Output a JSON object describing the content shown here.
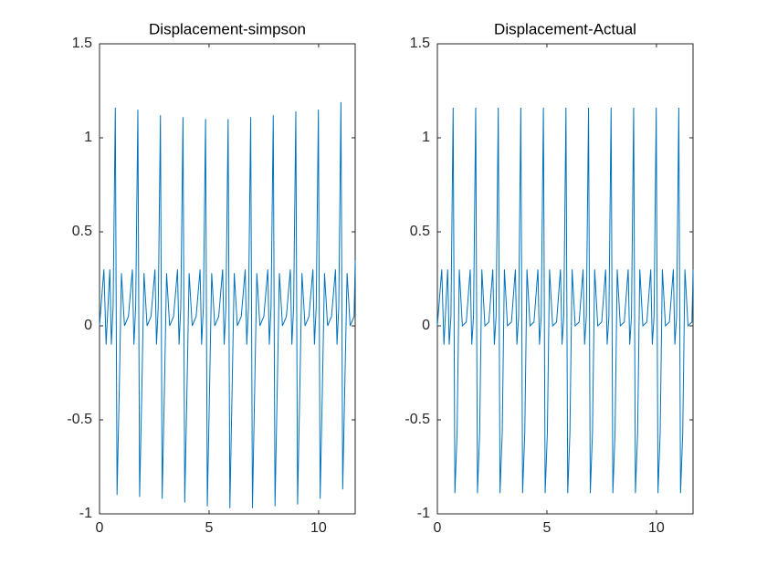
{
  "chart_data": [
    {
      "type": "line",
      "title": "Displacement-simpson",
      "color": "#0072bd",
      "xlim": [
        0,
        11.67
      ],
      "ylim": [
        -1,
        1.5
      ],
      "xticks": [
        0,
        5,
        10
      ],
      "yticks": [
        -1,
        -0.5,
        0,
        0.5,
        1,
        1.5
      ],
      "grid": false,
      "x": [
        0,
        0.2,
        0.3,
        0.47,
        0.54,
        0.62,
        0.72,
        0.8,
        0.9,
        1.0,
        1.14,
        1.32,
        1.5,
        1.57,
        1.65,
        1.75,
        1.83,
        1.93,
        2.03,
        2.17,
        2.35,
        2.53,
        2.6,
        2.68,
        2.78,
        2.86,
        2.96,
        3.06,
        3.2,
        3.38,
        3.56,
        3.63,
        3.71,
        3.81,
        3.89,
        3.99,
        4.09,
        4.23,
        4.41,
        4.59,
        4.66,
        4.74,
        4.84,
        4.92,
        5.02,
        5.12,
        5.26,
        5.44,
        5.62,
        5.69,
        5.77,
        5.87,
        5.95,
        6.05,
        6.15,
        6.29,
        6.47,
        6.65,
        6.72,
        6.8,
        6.9,
        6.98,
        7.08,
        7.18,
        7.32,
        7.5,
        7.68,
        7.75,
        7.83,
        7.93,
        8.01,
        8.11,
        8.21,
        8.35,
        8.53,
        8.71,
        8.78,
        8.86,
        8.96,
        9.04,
        9.14,
        9.24,
        9.38,
        9.56,
        9.74,
        9.81,
        9.89,
        9.99,
        10.07,
        10.17,
        10.27,
        10.41,
        10.59,
        10.77,
        10.84,
        10.92,
        11.02,
        11.1,
        11.2,
        11.3,
        11.44,
        11.62,
        11.67
      ],
      "values": [
        0,
        0.3,
        -0.1,
        0.3,
        -0.1,
        0.1,
        1.16,
        -0.9,
        -0.35,
        0.28,
        0.0,
        0.05,
        0.3,
        -0.1,
        0.1,
        1.15,
        -0.91,
        -0.35,
        0.28,
        0.0,
        0.05,
        0.3,
        -0.1,
        0.1,
        1.12,
        -0.92,
        -0.35,
        0.28,
        0.0,
        0.05,
        0.3,
        -0.1,
        0.1,
        1.11,
        -0.94,
        -0.35,
        0.28,
        0.0,
        0.05,
        0.3,
        -0.1,
        0.1,
        1.1,
        -0.96,
        -0.35,
        0.28,
        0.0,
        0.05,
        0.3,
        -0.1,
        0.1,
        1.1,
        -0.97,
        -0.35,
        0.28,
        0.0,
        0.05,
        0.3,
        -0.1,
        0.1,
        1.11,
        -0.97,
        -0.35,
        0.28,
        0.0,
        0.05,
        0.3,
        -0.1,
        0.1,
        1.12,
        -0.96,
        -0.35,
        0.28,
        0.0,
        0.05,
        0.3,
        -0.1,
        0.1,
        1.14,
        -0.95,
        -0.35,
        0.28,
        0.0,
        0.05,
        0.3,
        -0.1,
        0.1,
        1.15,
        -0.92,
        -0.35,
        0.28,
        0.0,
        0.05,
        0.3,
        -0.1,
        0.1,
        1.19,
        -0.87,
        -0.3,
        0.28,
        0.0,
        0.05,
        0.35
      ]
    },
    {
      "type": "line",
      "title": "Displacement-Actual",
      "color": "#0072bd",
      "xlim": [
        0,
        11.67
      ],
      "ylim": [
        -1,
        1.5
      ],
      "xticks": [
        0,
        5,
        10
      ],
      "yticks": [
        -1,
        -0.5,
        0,
        0.5,
        1,
        1.5
      ],
      "grid": false,
      "x": [
        0,
        0.2,
        0.3,
        0.47,
        0.54,
        0.62,
        0.72,
        0.8,
        0.9,
        1.0,
        1.14,
        1.32,
        1.5,
        1.57,
        1.65,
        1.75,
        1.83,
        1.93,
        2.03,
        2.17,
        2.35,
        2.53,
        2.6,
        2.68,
        2.78,
        2.86,
        2.96,
        3.06,
        3.2,
        3.38,
        3.56,
        3.63,
        3.71,
        3.81,
        3.89,
        3.99,
        4.09,
        4.23,
        4.41,
        4.59,
        4.66,
        4.74,
        4.84,
        4.92,
        5.02,
        5.12,
        5.26,
        5.44,
        5.62,
        5.69,
        5.77,
        5.87,
        5.95,
        6.05,
        6.15,
        6.29,
        6.47,
        6.65,
        6.72,
        6.8,
        6.9,
        6.98,
        7.08,
        7.18,
        7.32,
        7.5,
        7.68,
        7.75,
        7.83,
        7.93,
        8.01,
        8.11,
        8.21,
        8.35,
        8.53,
        8.71,
        8.78,
        8.86,
        8.96,
        9.04,
        9.14,
        9.24,
        9.38,
        9.56,
        9.74,
        9.81,
        9.89,
        9.99,
        10.07,
        10.17,
        10.27,
        10.41,
        10.59,
        10.77,
        10.84,
        10.92,
        11.02,
        11.1,
        11.2,
        11.3,
        11.44,
        11.62,
        11.67
      ],
      "values": [
        0,
        0.3,
        -0.1,
        0.3,
        -0.1,
        0.05,
        1.16,
        -0.89,
        -0.57,
        0.3,
        0.0,
        0.02,
        0.3,
        -0.1,
        0.05,
        1.16,
        -0.89,
        -0.57,
        0.3,
        0.0,
        0.02,
        0.3,
        -0.1,
        0.05,
        1.16,
        -0.89,
        -0.57,
        0.3,
        0.0,
        0.02,
        0.3,
        -0.1,
        0.05,
        1.16,
        -0.89,
        -0.57,
        0.3,
        0.0,
        0.02,
        0.3,
        -0.1,
        0.05,
        1.16,
        -0.89,
        -0.57,
        0.3,
        0.0,
        0.02,
        0.3,
        -0.1,
        0.05,
        1.16,
        -0.89,
        -0.57,
        0.3,
        0.0,
        0.02,
        0.3,
        -0.1,
        0.05,
        1.16,
        -0.89,
        -0.57,
        0.3,
        0.0,
        0.02,
        0.3,
        -0.1,
        0.05,
        1.16,
        -0.89,
        -0.57,
        0.3,
        0.0,
        0.02,
        0.3,
        -0.1,
        0.05,
        1.16,
        -0.89,
        -0.57,
        0.3,
        0.0,
        0.02,
        0.3,
        -0.1,
        0.05,
        1.16,
        -0.89,
        -0.57,
        0.3,
        0.0,
        0.02,
        0.3,
        -0.1,
        0.05,
        1.16,
        -0.89,
        -0.57,
        0.3,
        0.0,
        0.02,
        0.3
      ]
    }
  ]
}
